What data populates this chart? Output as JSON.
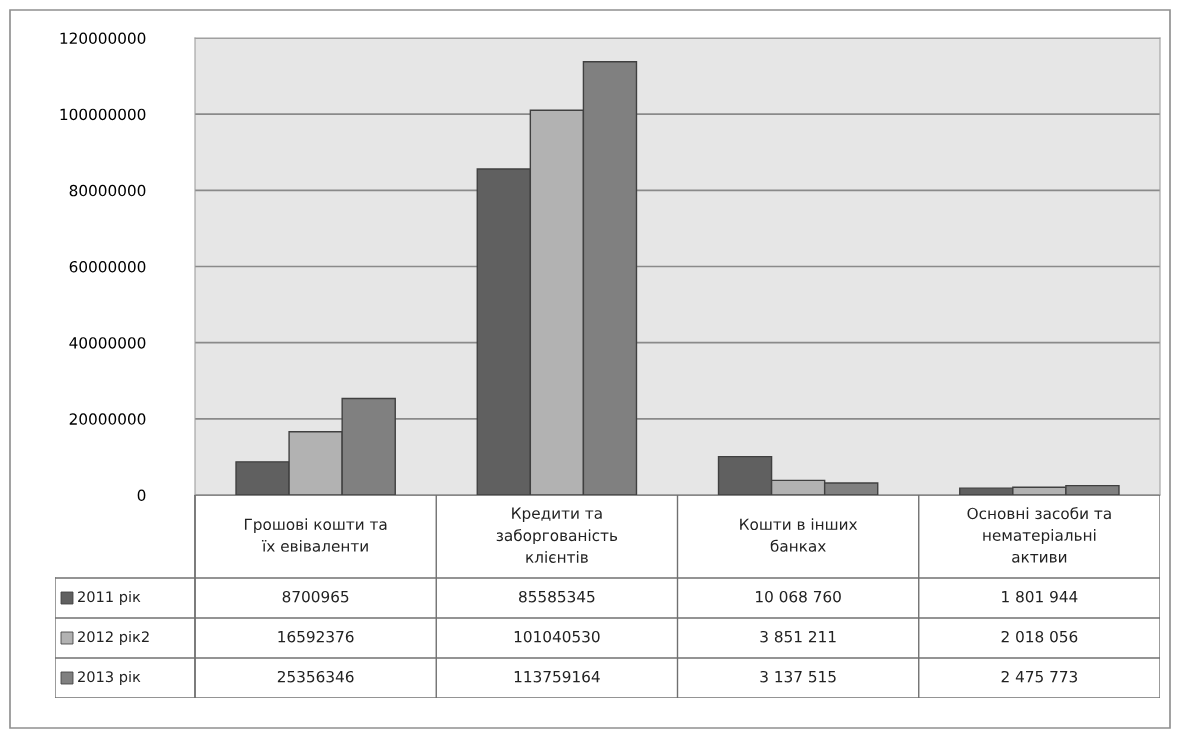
{
  "chart_data": {
    "type": "bar",
    "categories": [
      "Грошові кошти та\nїх евіваленти",
      "Кредити та\nзаборгованість\nклієнтів",
      "Кошти в інших\nбанках",
      "Основні засоби та\nнематеріальні\nактиви"
    ],
    "series": [
      {
        "name": "2011 рік",
        "color": "#606060",
        "values": [
          8700965,
          85585345,
          10068760,
          1801944
        ],
        "value_labels": [
          "8700965",
          "85585345",
          "10 068 760",
          "1 801 944"
        ]
      },
      {
        "name": "2012 рік2",
        "color": "#b2b2b2",
        "values": [
          16592376,
          101040530,
          3851211,
          2018056
        ],
        "value_labels": [
          "16592376",
          "101040530",
          "3 851 211",
          "2 018 056"
        ]
      },
      {
        "name": "2013 рік",
        "color": "#808080",
        "values": [
          25356346,
          113759164,
          3137515,
          2475773
        ],
        "value_labels": [
          "25356346",
          "113759164",
          "3 137 515",
          "2 475 773"
        ]
      }
    ],
    "ylim": [
      0,
      120000000
    ],
    "yticks": [
      0,
      20000000,
      40000000,
      60000000,
      80000000,
      100000000,
      120000000
    ],
    "grid": "y",
    "legend": "bottom left"
  }
}
